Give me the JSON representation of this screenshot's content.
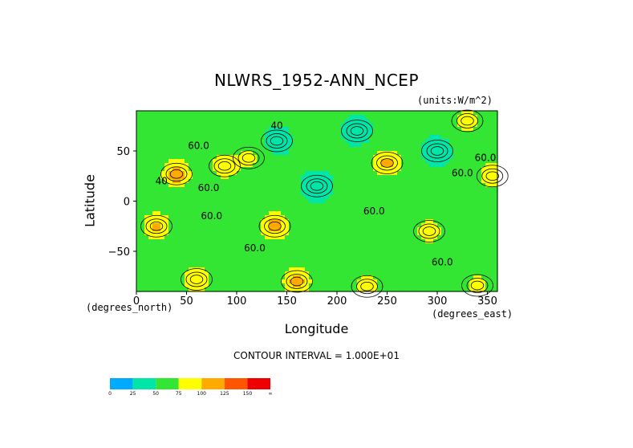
{
  "chart_data": {
    "type": "heatmap",
    "title": "NLWRS_1952-ANN_NCEP",
    "units": "(units:W/m^2)",
    "xlabel": "Longitude",
    "ylabel": "Latitude",
    "x_unit_left": "(degrees_north)",
    "x_unit_right": "(degrees_east)",
    "xlim": [
      0,
      360
    ],
    "ylim": [
      -90,
      90
    ],
    "x_ticks": [
      0,
      50,
      100,
      150,
      200,
      250,
      300,
      350
    ],
    "x_tick_labels": [
      "0",
      "50",
      "100",
      "150",
      "200",
      "250",
      "300",
      "350"
    ],
    "y_ticks": [
      50,
      0,
      -50
    ],
    "y_tick_labels": [
      "50",
      "0",
      "−50"
    ],
    "contour_interval": "CONTOUR INTERVAL = 1.000E+01",
    "contour_labels": [
      {
        "text": "60.0",
        "lon": 62,
        "lat": 52
      },
      {
        "text": "60.0",
        "lon": 72,
        "lat": 10
      },
      {
        "text": "40",
        "lon": 25,
        "lat": 17
      },
      {
        "text": "60.0",
        "lon": 75,
        "lat": -18
      },
      {
        "text": "60.0",
        "lon": 118,
        "lat": -50
      },
      {
        "text": "60.0",
        "lon": 237,
        "lat": -13
      },
      {
        "text": "60.0",
        "lon": 325,
        "lat": 25
      },
      {
        "text": "60.0",
        "lon": 348,
        "lat": 40
      },
      {
        "text": "60.0",
        "lon": 305,
        "lat": -64
      },
      {
        "text": "40",
        "lon": 140,
        "lat": 72
      }
    ],
    "colorbar": {
      "levels": [
        "0",
        "25",
        "50",
        "75",
        "100",
        "125",
        "150",
        "∞"
      ],
      "colors": [
        "#00aaff",
        "#00e6a8",
        "#33e633",
        "#ffff00",
        "#ffaa00",
        "#ff5500",
        "#ee0000"
      ]
    },
    "field": {
      "background_value": 55,
      "blobs": [
        {
          "lon": 40,
          "lat": 27,
          "value": 115
        },
        {
          "lon": 88,
          "lat": 35,
          "value": 95
        },
        {
          "lon": 112,
          "lat": 43,
          "value": 80
        },
        {
          "lon": 20,
          "lat": -25,
          "value": 105
        },
        {
          "lon": 138,
          "lat": -25,
          "value": 112
        },
        {
          "lon": 250,
          "lat": 38,
          "value": 108
        },
        {
          "lon": 355,
          "lat": 25,
          "value": 98
        },
        {
          "lon": 292,
          "lat": -30,
          "value": 90
        },
        {
          "lon": 330,
          "lat": 80,
          "value": 92
        },
        {
          "lon": 180,
          "lat": 15,
          "value": 35
        },
        {
          "lon": 140,
          "lat": 60,
          "value": 38
        },
        {
          "lon": 300,
          "lat": 50,
          "value": 38
        },
        {
          "lon": 220,
          "lat": 70,
          "value": 38
        },
        {
          "lon": 160,
          "lat": -80,
          "value": 110
        },
        {
          "lon": 60,
          "lat": -78,
          "value": 100
        },
        {
          "lon": 230,
          "lat": -85,
          "value": 95
        },
        {
          "lon": 340,
          "lat": -84,
          "value": 85
        }
      ]
    }
  }
}
